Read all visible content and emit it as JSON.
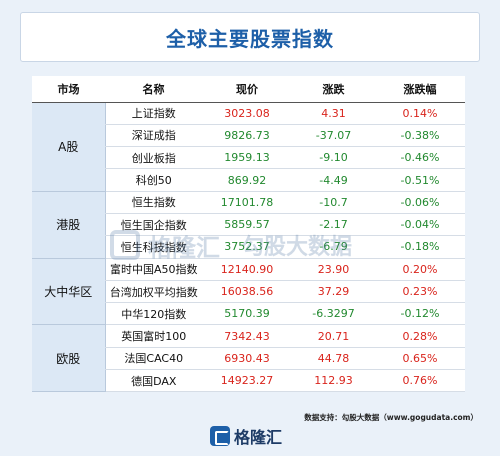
{
  "title": "全球主要股票指数",
  "headers": [
    "市场",
    "名称",
    "现价",
    "涨跌",
    "涨跌幅"
  ],
  "groups": [
    {
      "market": "A股",
      "rows": [
        {
          "name": "上证指数",
          "price": "3023.08",
          "change": "4.31",
          "pct": "0.14%",
          "dir": "up"
        },
        {
          "name": "深证成指",
          "price": "9826.73",
          "change": "-37.07",
          "pct": "-0.38%",
          "dir": "down"
        },
        {
          "name": "创业板指",
          "price": "1959.13",
          "change": "-9.10",
          "pct": "-0.46%",
          "dir": "down"
        },
        {
          "name": "科创50",
          "price": "869.92",
          "change": "-4.49",
          "pct": "-0.51%",
          "dir": "down"
        }
      ]
    },
    {
      "market": "港股",
      "rows": [
        {
          "name": "恒生指数",
          "price": "17101.78",
          "change": "-10.7",
          "pct": "-0.06%",
          "dir": "down"
        },
        {
          "name": "恒生国企指数",
          "price": "5859.57",
          "change": "-2.17",
          "pct": "-0.04%",
          "dir": "down"
        },
        {
          "name": "恒生科技指数",
          "price": "3752.37",
          "change": "-6.79",
          "pct": "-0.18%",
          "dir": "down"
        }
      ]
    },
    {
      "market": "大中华区",
      "rows": [
        {
          "name": "富时中国A50指数",
          "price": "12140.90",
          "change": "23.90",
          "pct": "0.20%",
          "dir": "up"
        },
        {
          "name": "台湾加权平均指数",
          "price": "16038.56",
          "change": "37.29",
          "pct": "0.23%",
          "dir": "up"
        },
        {
          "name": "中华120指数",
          "price": "5170.39",
          "change": "-6.3297",
          "pct": "-0.12%",
          "dir": "down"
        }
      ]
    },
    {
      "market": "欧股",
      "rows": [
        {
          "name": "英国富时100",
          "price": "7342.43",
          "change": "20.71",
          "pct": "0.28%",
          "dir": "up"
        },
        {
          "name": "法国CAC40",
          "price": "6930.43",
          "change": "44.78",
          "pct": "0.65%",
          "dir": "up"
        },
        {
          "name": "德国DAX",
          "price": "14923.27",
          "change": "112.93",
          "pct": "0.76%",
          "dir": "up"
        }
      ]
    }
  ],
  "watermark": {
    "brand": "格隆汇",
    "brand2": "勾股大数据"
  },
  "source": "数据支持：勾股大数据（www.gogudata.com）",
  "footer_brand": "格隆汇",
  "colors": {
    "up": "#d9241c",
    "down": "#22892f",
    "accent": "#1d5fa8",
    "market_bg": "#dce8f5"
  }
}
